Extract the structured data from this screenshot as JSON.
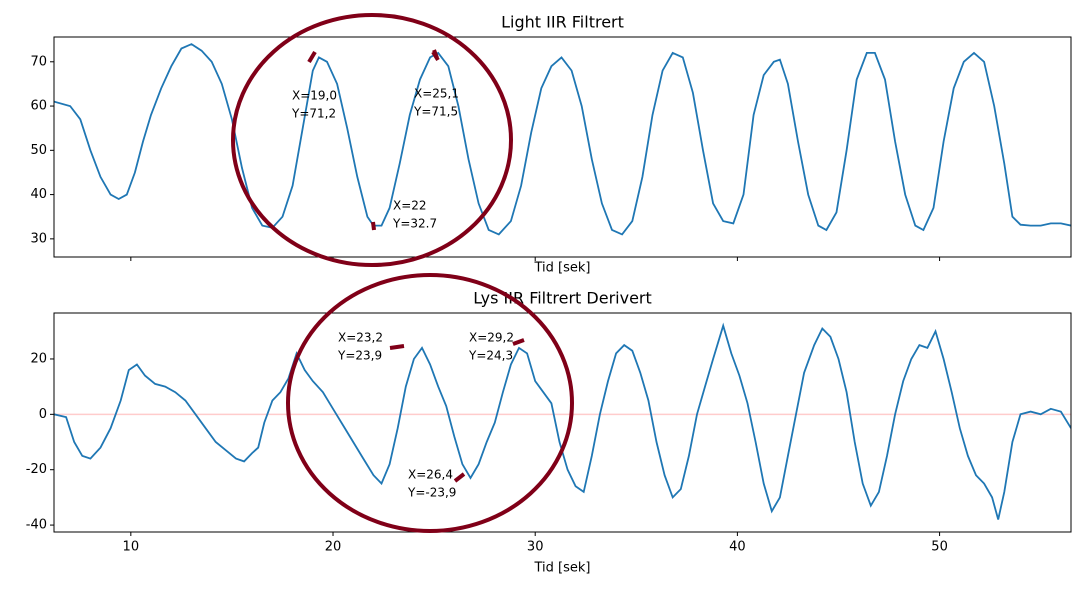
{
  "chart_data": [
    {
      "type": "line",
      "title": "Light IIR Filtrert",
      "x_label": "Tid [sek]",
      "x": [
        6.2,
        7,
        7.5,
        8,
        8.5,
        9,
        9.4,
        9.8,
        10.2,
        10.6,
        11,
        11.5,
        12,
        12.5,
        13,
        13.5,
        14,
        14.5,
        15,
        15.5,
        16,
        16.5,
        17,
        17.5,
        18,
        18.5,
        19,
        19.3,
        19.7,
        20.2,
        20.7,
        21.2,
        21.7,
        22,
        22.4,
        22.8,
        23.3,
        23.8,
        24.3,
        24.8,
        25.2,
        25.7,
        26.2,
        26.7,
        27.2,
        27.7,
        28.2,
        28.8,
        29.3,
        29.8,
        30.3,
        30.8,
        31.3,
        31.8,
        32.3,
        32.8,
        33.3,
        33.8,
        34.3,
        34.8,
        35.3,
        35.8,
        36.3,
        36.8,
        37.3,
        37.8,
        38.3,
        38.8,
        39.3,
        39.8,
        40.3,
        40.8,
        41.3,
        41.8,
        42.1,
        42.5,
        43,
        43.5,
        44,
        44.4,
        44.9,
        45.4,
        45.9,
        46.4,
        46.8,
        47.3,
        47.8,
        48.3,
        48.8,
        49.2,
        49.7,
        50.2,
        50.7,
        51.2,
        51.7,
        52.2,
        52.7,
        53.2,
        53.6,
        54,
        54.5,
        55,
        55.5,
        56,
        56.5
      ],
      "series": [
        {
          "color": "#1f77b4",
          "values": [
            61,
            60,
            57,
            50,
            44,
            40,
            39,
            40,
            45,
            52,
            58,
            64,
            69,
            73,
            74,
            72.5,
            70,
            65,
            57,
            46,
            37,
            33,
            32.5,
            35,
            42,
            55,
            68,
            71,
            70,
            65,
            55,
            44,
            35,
            33,
            33,
            37,
            47,
            58,
            66,
            71,
            72,
            69,
            60,
            48,
            38,
            32,
            31,
            34,
            42,
            54,
            64,
            69,
            71,
            68,
            60,
            48,
            38,
            32,
            31,
            34,
            44,
            58,
            68,
            72,
            71,
            63,
            50,
            38,
            34,
            33.5,
            40,
            58,
            67,
            70,
            70.5,
            65,
            52,
            40,
            33,
            32,
            36,
            50,
            66,
            72,
            72,
            66,
            52,
            40,
            33,
            32,
            37,
            52,
            64,
            70,
            72,
            70,
            60,
            47,
            35,
            33.2,
            33,
            33,
            33.5,
            33.5,
            33
          ]
        }
      ],
      "xlim": [
        6.2,
        56.5
      ],
      "ylim": [
        25.9,
        75.6
      ],
      "xticks": [
        10,
        20,
        30,
        40,
        50
      ],
      "yticks": [
        30,
        40,
        50,
        60,
        70
      ],
      "annotations": [
        [
          "X=19,0",
          "Y=71,2"
        ],
        [
          "X=25,1",
          "Y=71,5"
        ],
        [
          "X=22",
          "Y=32.7"
        ]
      ]
    },
    {
      "type": "line",
      "title": "Lys IIR Filtrert Derivert",
      "x_label": "Tid [sek]",
      "x": [
        6.2,
        6.8,
        7.2,
        7.6,
        8,
        8.5,
        9,
        9.5,
        9.9,
        10.3,
        10.7,
        11.2,
        11.7,
        12.2,
        12.7,
        13.2,
        13.7,
        14.2,
        14.7,
        15.2,
        15.6,
        16,
        16.3,
        16.6,
        17,
        17.4,
        17.8,
        18.2,
        18.6,
        19,
        19.5,
        20,
        20.5,
        21,
        21.5,
        22,
        22.4,
        22.8,
        23.2,
        23.6,
        24,
        24.4,
        24.8,
        25.2,
        25.6,
        26,
        26.4,
        26.8,
        27.2,
        27.6,
        28,
        28.4,
        28.8,
        29.2,
        29.6,
        30,
        30.4,
        30.8,
        31.2,
        31.6,
        32,
        32.4,
        32.8,
        33.2,
        33.6,
        34,
        34.4,
        34.8,
        35.2,
        35.6,
        36,
        36.4,
        36.8,
        37.2,
        37.6,
        38,
        38.4,
        38.8,
        39.3,
        39.7,
        40.1,
        40.5,
        40.9,
        41.3,
        41.7,
        42.1,
        42.5,
        42.9,
        43.3,
        43.8,
        44.2,
        44.6,
        45,
        45.4,
        45.8,
        46.2,
        46.6,
        47,
        47.4,
        47.8,
        48.2,
        48.6,
        49,
        49.4,
        49.8,
        50.2,
        50.6,
        51,
        51.4,
        51.8,
        52.2,
        52.6,
        52.9,
        53.2,
        53.6,
        54,
        54.5,
        55,
        55.5,
        56,
        56.5
      ],
      "series": [
        {
          "color": "#1f77b4",
          "values": [
            0,
            -1,
            -10,
            -15,
            -16,
            -12,
            -5,
            5,
            16,
            18,
            14,
            11,
            10,
            8,
            5,
            0,
            -5,
            -10,
            -13,
            -16,
            -17,
            -14,
            -12,
            -3,
            5,
            8,
            13,
            22,
            16,
            12,
            8,
            2,
            -4,
            -10,
            -16,
            -22,
            -25,
            -18,
            -5,
            10,
            20,
            24,
            18,
            10,
            3,
            -8,
            -18,
            -23,
            -18,
            -10,
            -3,
            8,
            18,
            24,
            22,
            12,
            8,
            4,
            -10,
            -20,
            -26,
            -28,
            -15,
            0,
            12,
            22,
            25,
            23,
            15,
            5,
            -10,
            -22,
            -30,
            -27,
            -15,
            0,
            10,
            20,
            32,
            22,
            14,
            4,
            -10,
            -25,
            -35,
            -30,
            -15,
            0,
            15,
            25,
            31,
            28,
            20,
            8,
            -10,
            -25,
            -33,
            -28,
            -15,
            0,
            12,
            20,
            25,
            24,
            30,
            20,
            8,
            -5,
            -15,
            -22,
            -25,
            -30,
            -38,
            -28,
            -10,
            0,
            1,
            0,
            2,
            1,
            -5
          ]
        }
      ],
      "hline": {
        "value": 0,
        "color": "#ffcccc"
      },
      "xlim": [
        6.2,
        56.5
      ],
      "ylim": [
        -42.5,
        36.6
      ],
      "xticks": [
        10,
        20,
        30,
        40,
        50
      ],
      "yticks": [
        -40,
        -20,
        0,
        20
      ],
      "annotations": [
        [
          "X=23,2",
          "Y=23,9"
        ],
        [
          "X=29,2",
          "Y=24,3"
        ],
        [
          "X=26,4",
          "Y=-23,9"
        ]
      ]
    }
  ]
}
